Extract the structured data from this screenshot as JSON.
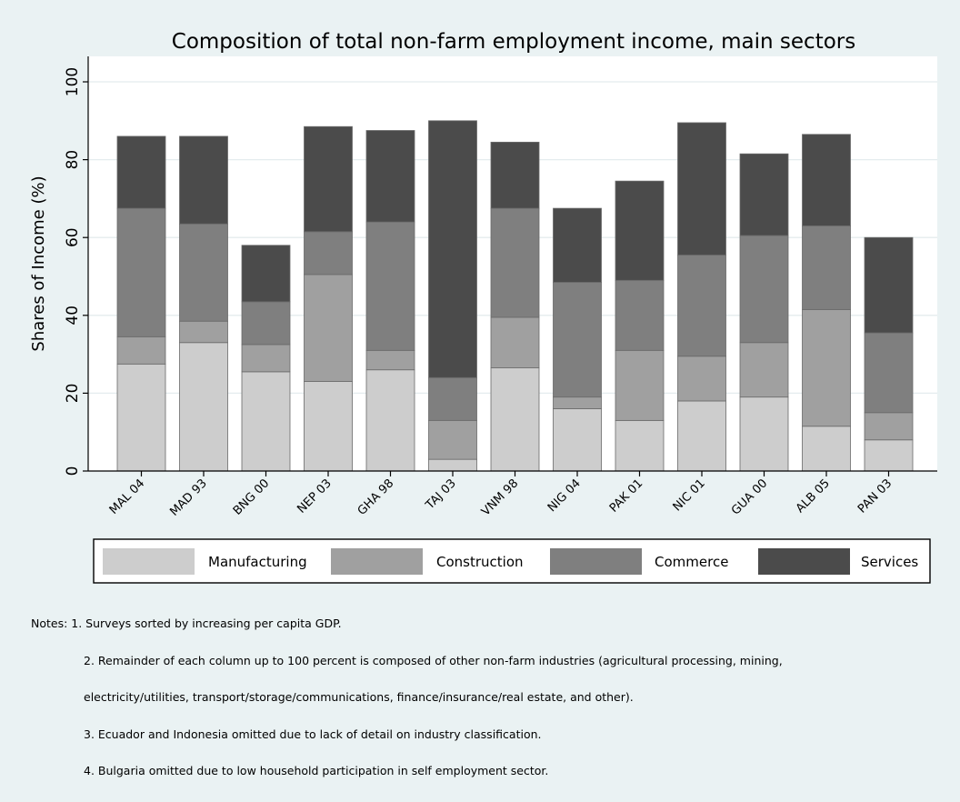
{
  "chart_data": {
    "type": "bar",
    "stacked": true,
    "title": "Composition of total non-farm employment income, main sectors",
    "ylabel": "Shares of Income (%)",
    "xlabel": "",
    "ylim": [
      0,
      100
    ],
    "yticks": [
      0,
      20,
      40,
      60,
      80,
      100
    ],
    "grid": true,
    "legend_position": "bottom",
    "categories": [
      "MAL 04",
      "MAD 93",
      "BNG 00",
      "NEP 03",
      "GHA 98",
      "TAJ 03",
      "VNM 98",
      "NIG 04",
      "PAK 01",
      "NIC 01",
      "GUA 00",
      "ALB 05",
      "PAN 03"
    ],
    "series": [
      {
        "name": "Manufacturing",
        "color": "#cdcdcd",
        "values": [
          27.5,
          33,
          25.5,
          23,
          26,
          3,
          26.5,
          16,
          13,
          18,
          19,
          11.5,
          8
        ]
      },
      {
        "name": "Construction",
        "color": "#a0a0a0",
        "values": [
          7,
          5.5,
          7,
          27.5,
          5,
          10,
          13,
          3,
          18,
          11.5,
          14,
          30,
          7
        ]
      },
      {
        "name": "Commerce",
        "color": "#7f7f7f",
        "values": [
          33,
          25,
          11,
          11,
          33,
          11,
          28,
          29.5,
          18,
          26,
          27.5,
          21.5,
          20.5
        ]
      },
      {
        "name": "Services",
        "color": "#4b4b4b",
        "values": [
          18.5,
          22.5,
          14.5,
          27,
          23.5,
          66,
          17,
          19,
          25.5,
          34,
          21,
          23.5,
          24.5
        ]
      }
    ]
  },
  "notes": {
    "line1": "Notes: 1. Surveys sorted by increasing per capita GDP.",
    "line2": "2. Remainder of each column up to 100 percent is composed of other non-farm industries (agricultural processing, mining,",
    "line3": "electricity/utilities, transport/storage/communications, finance/insurance/real estate, and other).",
    "line4": "3. Ecuador and Indonesia omitted due to lack of detail on industry classification.",
    "line5": "4. Bulgaria omitted due to low household participation in self employment sector."
  }
}
